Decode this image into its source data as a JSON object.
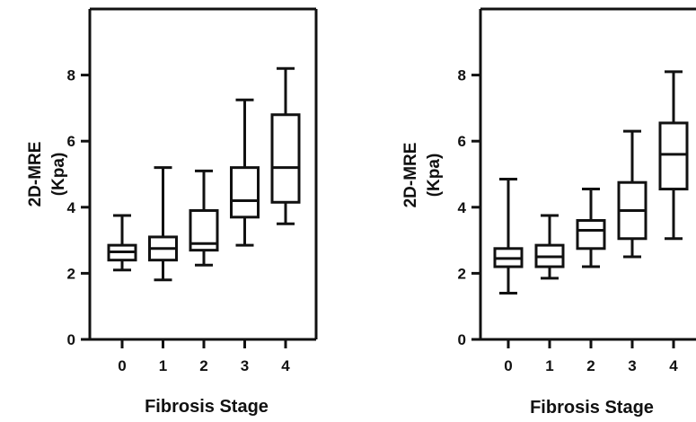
{
  "chart_data": [
    {
      "type": "boxplot",
      "xlabel": "Fibrosis Stage",
      "ylabel_lines": [
        "2D-MRE",
        "(Kpa)"
      ],
      "ylim": [
        0,
        10
      ],
      "yticks": [
        "0",
        "2",
        "4",
        "6",
        "8"
      ],
      "categories": [
        "0",
        "1",
        "2",
        "3",
        "4"
      ],
      "series": [
        {
          "boxes": [
            {
              "min": 2.1,
              "q1": 2.4,
              "median": 2.65,
              "q3": 2.85,
              "max": 3.75
            },
            {
              "min": 1.8,
              "q1": 2.4,
              "median": 2.75,
              "q3": 3.1,
              "max": 5.2
            },
            {
              "min": 2.25,
              "q1": 2.7,
              "median": 2.9,
              "q3": 3.9,
              "max": 5.1
            },
            {
              "min": 2.85,
              "q1": 3.7,
              "median": 4.2,
              "q3": 5.2,
              "max": 7.25
            },
            {
              "min": 3.5,
              "q1": 4.15,
              "median": 5.2,
              "q3": 6.8,
              "max": 8.2
            }
          ]
        }
      ]
    },
    {
      "type": "boxplot",
      "xlabel": "Fibrosis Stage",
      "ylabel_lines": [
        "2D-MRE",
        "(Kpa)"
      ],
      "ylim": [
        0,
        10
      ],
      "yticks": [
        "0",
        "2",
        "4",
        "6",
        "8"
      ],
      "categories": [
        "0",
        "1",
        "2",
        "3",
        "4"
      ],
      "series": [
        {
          "boxes": [
            {
              "min": 1.4,
              "q1": 2.2,
              "median": 2.45,
              "q3": 2.75,
              "max": 4.85
            },
            {
              "min": 1.85,
              "q1": 2.2,
              "median": 2.5,
              "q3": 2.85,
              "max": 3.75
            },
            {
              "min": 2.2,
              "q1": 2.75,
              "median": 3.3,
              "q3": 3.6,
              "max": 4.55
            },
            {
              "min": 2.5,
              "q1": 3.05,
              "median": 3.9,
              "q3": 4.75,
              "max": 6.3
            },
            {
              "min": 3.05,
              "q1": 4.55,
              "median": 5.6,
              "q3": 6.55,
              "max": 8.1
            }
          ]
        }
      ]
    }
  ]
}
